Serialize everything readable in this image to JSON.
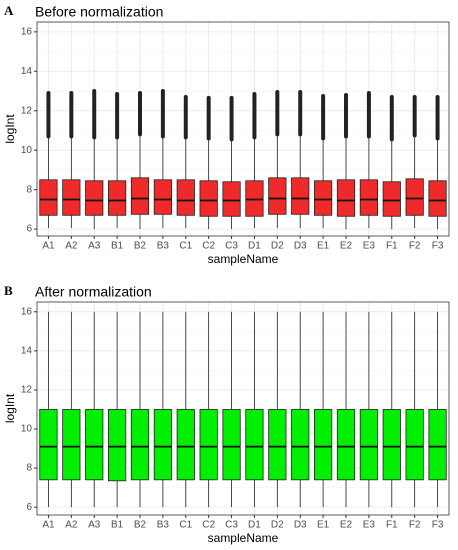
{
  "chart_data": [
    {
      "type": "box",
      "label": "A",
      "title": "Before normalization",
      "xlabel": "sampleName",
      "ylabel": "logInt",
      "categories": [
        "A1",
        "A2",
        "A3",
        "B1",
        "B2",
        "B3",
        "C1",
        "C2",
        "C3",
        "D1",
        "D2",
        "D3",
        "E1",
        "E2",
        "E3",
        "F1",
        "F2",
        "F3"
      ],
      "whislo": [
        6.05,
        6.05,
        6.0,
        6.05,
        6.0,
        6.05,
        6.05,
        6.0,
        6.0,
        6.05,
        6.05,
        6.05,
        6.05,
        6.0,
        6.05,
        6.0,
        6.05,
        6.0
      ],
      "q1": [
        6.7,
        6.7,
        6.7,
        6.7,
        6.75,
        6.75,
        6.7,
        6.65,
        6.65,
        6.65,
        6.75,
        6.75,
        6.7,
        6.65,
        6.7,
        6.65,
        6.7,
        6.65
      ],
      "median": [
        7.5,
        7.5,
        7.45,
        7.45,
        7.55,
        7.5,
        7.45,
        7.45,
        7.45,
        7.5,
        7.55,
        7.55,
        7.5,
        7.45,
        7.5,
        7.45,
        7.55,
        7.45
      ],
      "q3": [
        8.5,
        8.5,
        8.45,
        8.45,
        8.6,
        8.5,
        8.5,
        8.45,
        8.4,
        8.45,
        8.6,
        8.6,
        8.45,
        8.5,
        8.5,
        8.4,
        8.55,
        8.45
      ],
      "whishi": [
        10.7,
        10.7,
        10.65,
        10.65,
        10.8,
        10.7,
        10.65,
        10.6,
        10.55,
        10.65,
        10.8,
        10.8,
        10.6,
        10.7,
        10.7,
        10.55,
        10.75,
        10.6
      ],
      "outlier_max": [
        12.9,
        12.9,
        13.0,
        12.85,
        12.9,
        13.0,
        12.7,
        12.65,
        12.65,
        12.85,
        12.95,
        12.95,
        12.75,
        12.8,
        12.9,
        12.7,
        12.7,
        12.7
      ],
      "color": "#ee2a2a",
      "ylim": [
        5.65,
        16.5
      ],
      "yticks": [
        6,
        8,
        10,
        12,
        14,
        16
      ],
      "grid": true
    },
    {
      "type": "box",
      "label": "B",
      "title": "After normalization",
      "xlabel": "sampleName",
      "ylabel": "logInt",
      "categories": [
        "A1",
        "A2",
        "A3",
        "B1",
        "B2",
        "B3",
        "C1",
        "C2",
        "C3",
        "D1",
        "D2",
        "D3",
        "E1",
        "E2",
        "E3",
        "F1",
        "F2",
        "F3"
      ],
      "whislo": [
        6.0,
        6.0,
        6.0,
        6.0,
        6.0,
        6.0,
        6.0,
        6.0,
        6.0,
        6.0,
        6.0,
        6.0,
        6.0,
        6.0,
        6.0,
        6.0,
        6.0,
        6.0
      ],
      "q1": [
        7.4,
        7.4,
        7.4,
        7.35,
        7.4,
        7.4,
        7.4,
        7.4,
        7.4,
        7.4,
        7.4,
        7.4,
        7.4,
        7.4,
        7.4,
        7.4,
        7.4,
        7.4
      ],
      "median": [
        9.1,
        9.1,
        9.1,
        9.1,
        9.1,
        9.1,
        9.1,
        9.1,
        9.1,
        9.1,
        9.1,
        9.1,
        9.1,
        9.1,
        9.1,
        9.1,
        9.1,
        9.1
      ],
      "q3": [
        11,
        11,
        11,
        11,
        11,
        11,
        11,
        11,
        11,
        11,
        11,
        11,
        11,
        11,
        11,
        11,
        11,
        11
      ],
      "whishi": [
        16,
        16,
        16,
        16,
        16,
        16,
        16,
        16,
        16,
        16,
        16,
        16,
        16,
        16,
        16,
        16,
        16,
        16
      ],
      "color": "#00ee00",
      "ylim": [
        5.6,
        16.5
      ],
      "yticks": [
        6,
        8,
        10,
        12,
        14,
        16
      ],
      "grid": true
    }
  ]
}
